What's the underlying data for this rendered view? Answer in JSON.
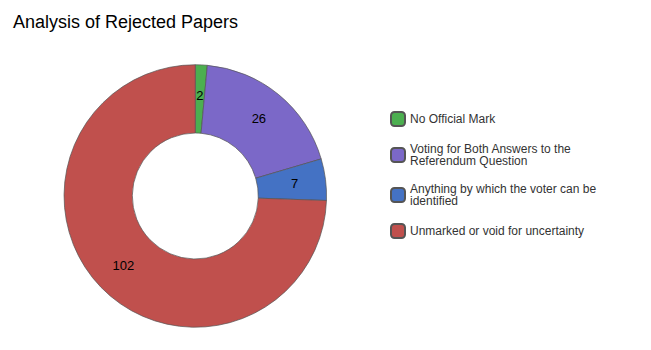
{
  "chart_data": {
    "type": "pie",
    "title": "Analysis of Rejected Papers",
    "categories": [
      "No Official Mark",
      "Voting for Both Answers to the\nReferendum Question",
      "Anything by which the voter can be\nidentified",
      "Unmarked or void for uncertainty"
    ],
    "values": [
      2,
      26,
      7,
      102
    ],
    "colors": [
      "#4CAF50",
      "#7B68C8",
      "#4472C4",
      "#C0504D"
    ],
    "data_labels": true,
    "legend": "right"
  }
}
